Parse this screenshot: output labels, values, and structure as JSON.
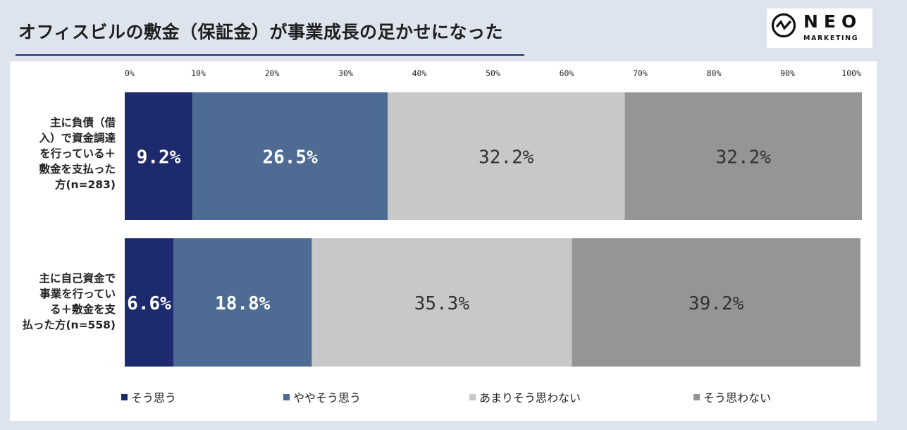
{
  "title": "オフィスビルの敷金（保証金）が事業成長の足かせになった",
  "logo": {
    "name": "NEO",
    "sub": "MARKETING"
  },
  "chart_data": {
    "type": "bar",
    "orientation": "horizontal",
    "stacked": true,
    "x_ticks": [
      "0%",
      "10%",
      "20%",
      "30%",
      "40%",
      "50%",
      "60%",
      "70%",
      "80%",
      "90%",
      "100%"
    ],
    "xlim": [
      0,
      100
    ],
    "categories": [
      [
        "主に負債（借",
        "入）で資金調達",
        "を行っている＋",
        "敷金を支払った",
        "方(n=283)"
      ],
      [
        "主に自己資金で",
        "事業を行ってい",
        "る＋敷金を支",
        "払った方(n=558)"
      ]
    ],
    "series": [
      {
        "name": "そう思う",
        "color": "#1e2a6e",
        "label_color": "#ffffff",
        "values": [
          9.2,
          6.6
        ],
        "labels": [
          "9.2%",
          "6.6%"
        ]
      },
      {
        "name": "ややそう思う",
        "color": "#4d6b93",
        "label_color": "#ffffff",
        "values": [
          26.5,
          18.8
        ],
        "labels": [
          "26.5%",
          "18.8%"
        ]
      },
      {
        "name": "あまりそう思わない",
        "color": "#c8c8c8",
        "label_color": "#333333",
        "values": [
          32.2,
          35.3
        ],
        "labels": [
          "32.2%",
          "35.3%"
        ]
      },
      {
        "name": "そう思わない",
        "color": "#959595",
        "label_color": "#333333",
        "values": [
          32.2,
          39.2
        ],
        "labels": [
          "32.2%",
          "39.2%"
        ]
      }
    ],
    "legend_position": "bottom",
    "grid": false
  }
}
